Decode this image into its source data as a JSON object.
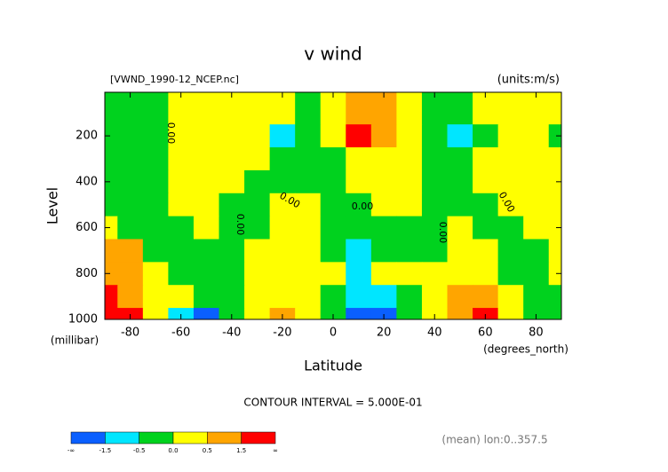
{
  "chart_data": {
    "type": "contour",
    "title": "v wind",
    "subtitle_left": "[VWND_1990-12_NCEP.nc]",
    "subtitle_right": "(units:m/s)",
    "y_label": "Level",
    "y_units": "(millibar)",
    "x_label": "Latitude",
    "x_units": "(degrees_north)",
    "note": "CONTOUR INTERVAL = 5.000E-01",
    "footer": "(mean) lon:0..357.5",
    "contour_label": "0.00",
    "x": [
      -90,
      -80,
      -70,
      -60,
      -50,
      -40,
      -30,
      -20,
      -10,
      0,
      10,
      20,
      30,
      40,
      50,
      60,
      70,
      80,
      90
    ],
    "y": [
      100,
      200,
      300,
      400,
      500,
      600,
      700,
      800,
      900,
      1000
    ],
    "z": [
      [
        -0.2,
        -0.2,
        -0.2,
        0.2,
        0.2,
        0.2,
        0.2,
        0.2,
        -0.2,
        0.2,
        1.0,
        1.0,
        0.2,
        -0.2,
        -0.2,
        0.2,
        0.2,
        0.2,
        0.2
      ],
      [
        -0.2,
        -0.2,
        -0.2,
        0.2,
        0.2,
        0.2,
        0.2,
        -0.8,
        -0.2,
        0.2,
        1.8,
        1.0,
        0.2,
        -0.2,
        -0.8,
        -0.2,
        0.2,
        0.2,
        -0.2
      ],
      [
        -0.2,
        -0.2,
        -0.2,
        0.2,
        0.2,
        0.2,
        0.2,
        -0.2,
        -0.2,
        -0.2,
        0.2,
        0.2,
        0.2,
        -0.2,
        -0.2,
        0.2,
        0.2,
        0.2,
        0.2
      ],
      [
        -0.2,
        -0.2,
        -0.2,
        0.2,
        0.2,
        0.2,
        -0.2,
        -0.2,
        -0.2,
        -0.2,
        0.2,
        0.2,
        0.2,
        -0.2,
        -0.2,
        0.2,
        0.2,
        0.2,
        0.2
      ],
      [
        -0.2,
        -0.2,
        -0.2,
        0.2,
        0.2,
        -0.2,
        -0.2,
        0.2,
        0.2,
        -0.2,
        -0.2,
        0.2,
        0.2,
        -0.2,
        -0.2,
        -0.2,
        0.2,
        0.2,
        0.2
      ],
      [
        0.2,
        -0.2,
        -0.2,
        -0.2,
        0.2,
        -0.2,
        -0.2,
        0.2,
        0.2,
        -0.2,
        -0.2,
        -0.2,
        -0.2,
        -0.2,
        0.2,
        -0.2,
        -0.2,
        0.2,
        0.2
      ],
      [
        0.8,
        0.8,
        -0.2,
        -0.2,
        -0.2,
        -0.2,
        0.2,
        0.2,
        0.2,
        -0.2,
        -0.8,
        -0.2,
        -0.2,
        -0.2,
        0.2,
        0.2,
        -0.2,
        -0.2,
        0.2
      ],
      [
        1.0,
        1.0,
        0.2,
        -0.2,
        -0.2,
        -0.2,
        0.2,
        0.2,
        0.2,
        0.2,
        -0.8,
        0.2,
        0.2,
        0.2,
        0.2,
        0.2,
        -0.2,
        -0.2,
        0.2
      ],
      [
        1.8,
        1.0,
        0.2,
        0.2,
        -0.2,
        -0.2,
        0.2,
        0.2,
        0.2,
        -0.2,
        -1.0,
        -0.8,
        -0.2,
        0.2,
        0.8,
        0.8,
        0.2,
        -0.2,
        -0.2
      ],
      [
        1.8,
        1.8,
        0.2,
        -0.8,
        -1.8,
        -0.2,
        0.2,
        0.8,
        0.2,
        -0.2,
        -1.8,
        -1.8,
        -0.2,
        0.2,
        1.0,
        1.8,
        0.2,
        -0.2,
        -0.2
      ]
    ],
    "xlim": [
      -90,
      90
    ],
    "ylim": [
      1000,
      10
    ],
    "xticks": [
      -80,
      -60,
      -40,
      -20,
      0,
      20,
      40,
      60,
      80
    ],
    "yticks": [
      200,
      400,
      600,
      800,
      1000
    ],
    "colorbar_ticks": [
      "-∞",
      -1.5,
      -0.5,
      {
        "value": 0,
        "label": "0.0"
      },
      0.5,
      1.5,
      "∞"
    ],
    "colors": [
      "#0a5fff",
      "#00e6ff",
      "#00d21e",
      "#ffff00",
      "#ffa500",
      "#ff0000"
    ]
  }
}
